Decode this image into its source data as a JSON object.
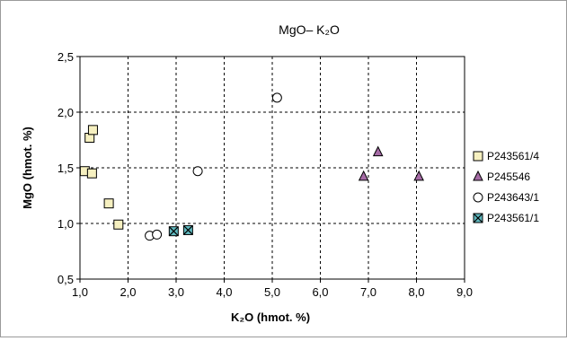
{
  "chart_data": {
    "type": "scatter",
    "title": "MgO– K₂O",
    "xlabel": "K₂O (hmot. %)",
    "ylabel": "MgO (hmot. %)",
    "xlim": [
      1.0,
      9.0
    ],
    "ylim": [
      0.5,
      2.5
    ],
    "x_ticks": [
      1.0,
      2.0,
      3.0,
      4.0,
      5.0,
      6.0,
      7.0,
      8.0,
      9.0
    ],
    "y_ticks": [
      0.5,
      1.0,
      1.5,
      2.0,
      2.5
    ],
    "x_tick_labels": [
      "1,0",
      "2,0",
      "3,0",
      "4,0",
      "5,0",
      "6,0",
      "7,0",
      "8,0",
      "9,0"
    ],
    "y_tick_labels": [
      "0,5",
      "1,0",
      "1,5",
      "2,0",
      "2,5"
    ],
    "grid": true,
    "grid_style": "dashed",
    "legend_position": "right",
    "series": [
      {
        "name": "P243561/4",
        "marker": "square",
        "color": "#f6f0c0",
        "points": [
          [
            1.1,
            1.47
          ],
          [
            1.2,
            1.77
          ],
          [
            1.27,
            1.84
          ],
          [
            1.25,
            1.45
          ],
          [
            1.6,
            1.18
          ],
          [
            1.8,
            0.99
          ]
        ]
      },
      {
        "name": "P245546",
        "marker": "triangle",
        "color": "#a56aa5",
        "points": [
          [
            6.9,
            1.42
          ],
          [
            7.2,
            1.64
          ],
          [
            8.05,
            1.42
          ]
        ]
      },
      {
        "name": "P243643/1",
        "marker": "circle",
        "color": "#ffffff",
        "points": [
          [
            5.1,
            2.13
          ],
          [
            3.45,
            1.47
          ],
          [
            2.45,
            0.89
          ],
          [
            2.6,
            0.9
          ]
        ]
      },
      {
        "name": "P243561/1",
        "marker": "x-square",
        "color": "#5fb9bf",
        "points": [
          [
            2.95,
            0.93
          ],
          [
            3.25,
            0.94
          ]
        ]
      }
    ]
  }
}
